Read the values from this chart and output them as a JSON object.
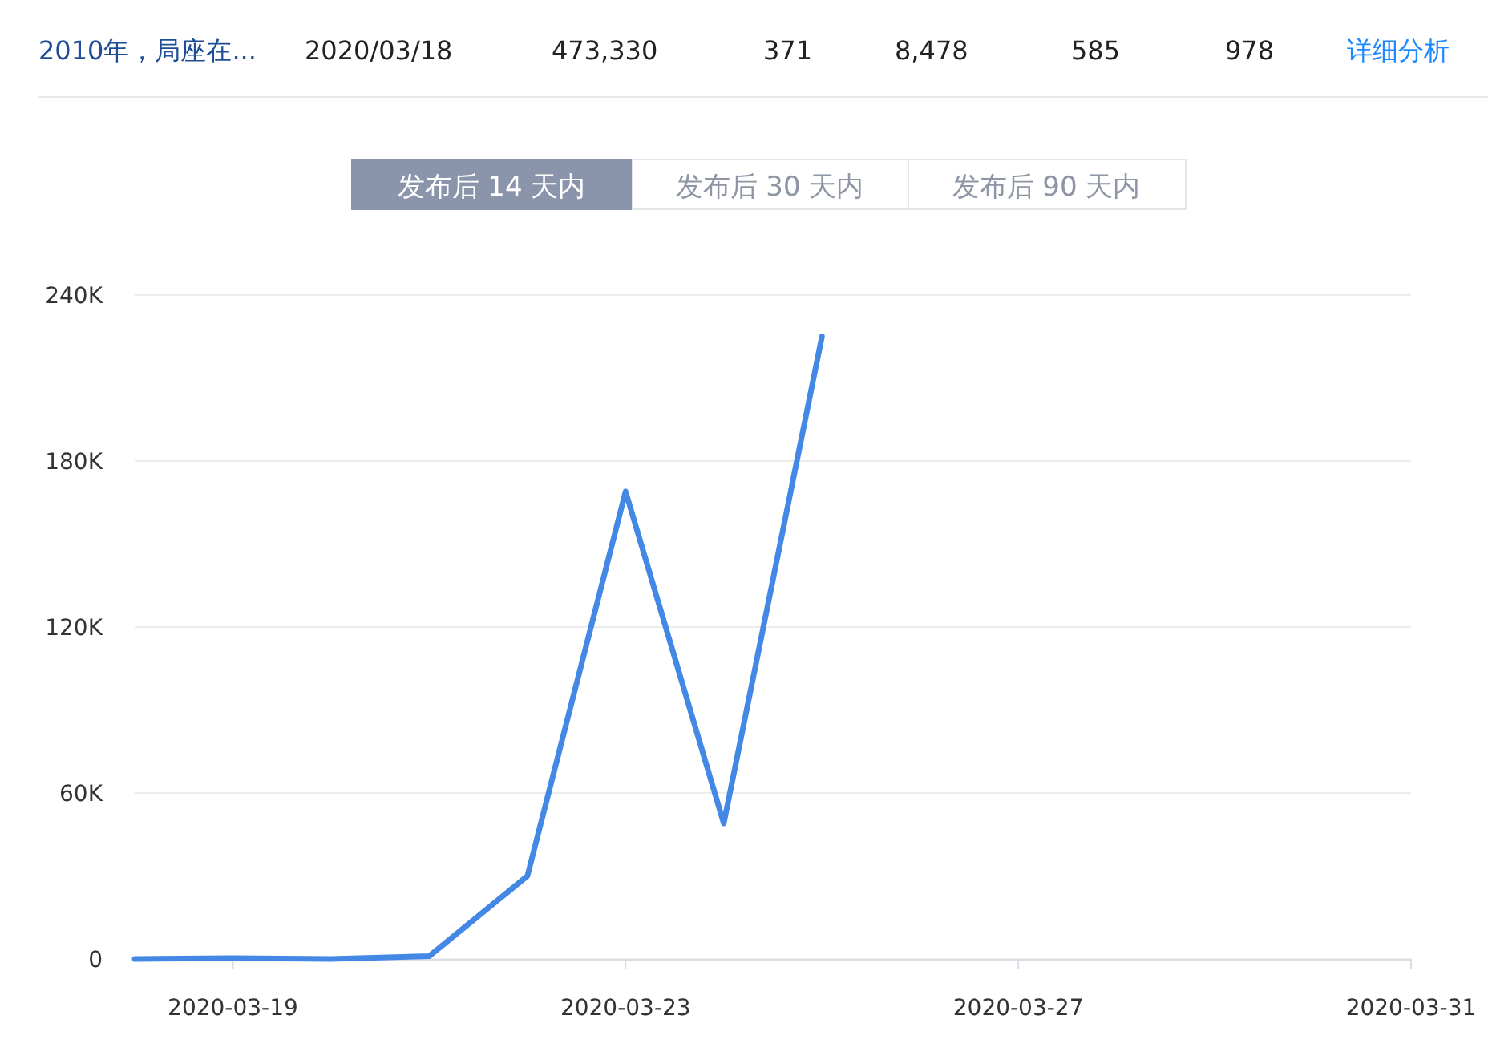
{
  "chart_data": {
    "type": "line",
    "annotations": [
      "2010年，局座在...",
      "2020/03/18",
      "473,330",
      "371",
      "8,478",
      "585",
      "978",
      "详细分析",
      "发布后 14 天内",
      "发布后 30 天内",
      "发布后 90 天内"
    ],
    "x": [
      "2020-03-18",
      "2020-03-19",
      "2020-03-20",
      "2020-03-21",
      "2020-03-22",
      "2020-03-23",
      "2020-03-24",
      "2020-03-25"
    ],
    "series": [
      {
        "color": "#4488e6",
        "values": [
          0,
          300,
          0,
          1000,
          30000,
          169000,
          49000,
          225000
        ]
      }
    ],
    "xlim": [
      "2020-03-18",
      "2020-03-31"
    ],
    "xticks": [
      "2020-03-19",
      "2020-03-23",
      "2020-03-27",
      "2020-03-31"
    ],
    "ylim": [
      0,
      240000
    ],
    "yticks": [
      {
        "value": 0,
        "label": "0"
      },
      {
        "value": 60000,
        "label": "60K"
      },
      {
        "value": 120000,
        "label": "120K"
      },
      {
        "value": 180000,
        "label": "180K"
      },
      {
        "value": 240000,
        "label": "240K"
      }
    ],
    "grid": "y",
    "marker": "none",
    "line_style": "solid"
  }
}
